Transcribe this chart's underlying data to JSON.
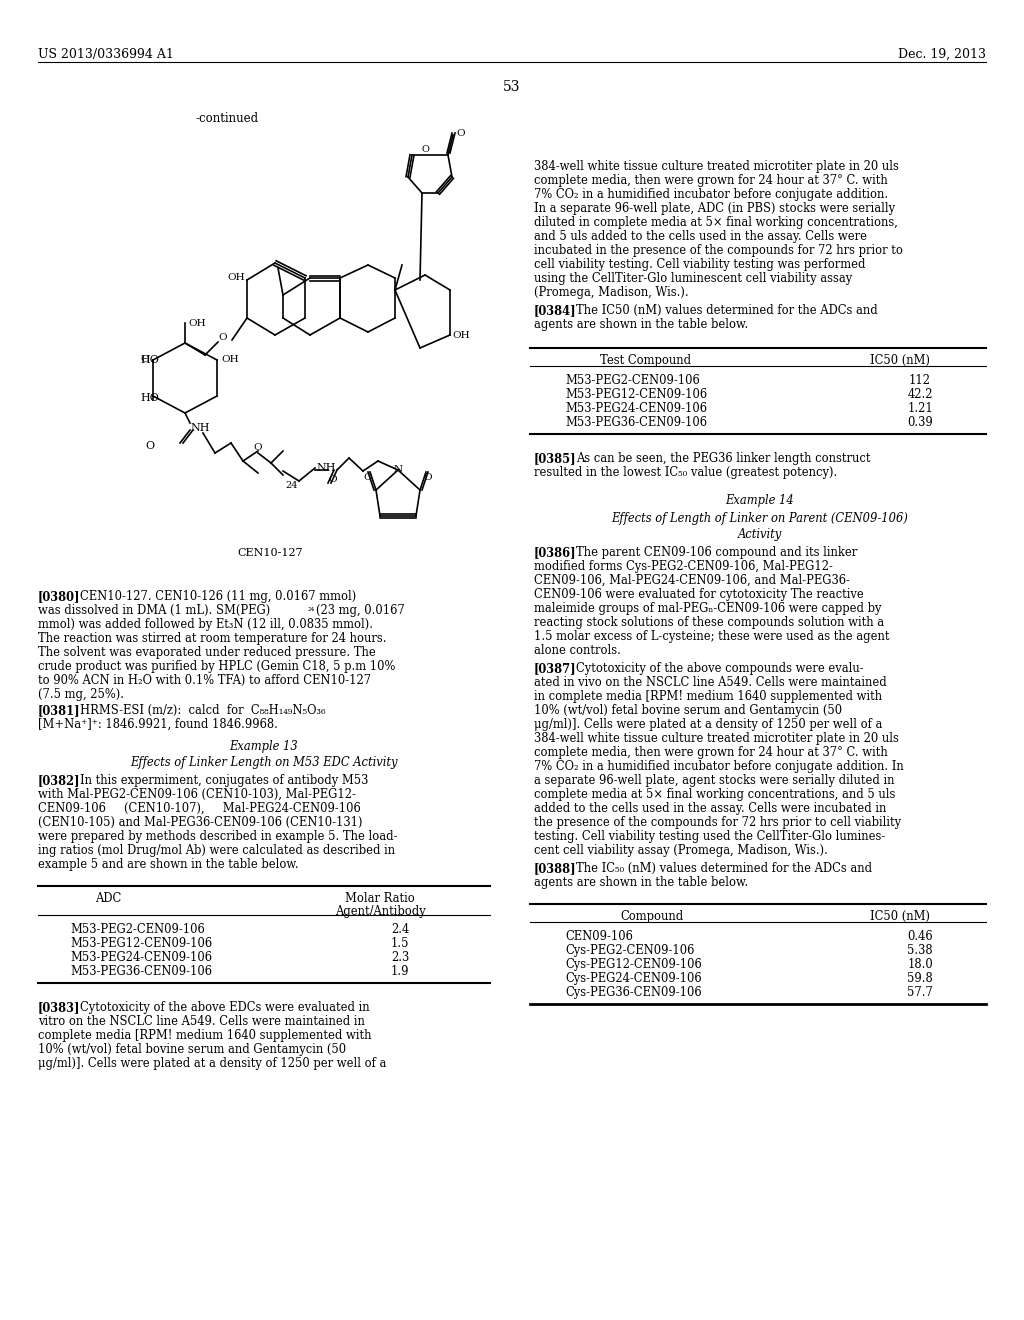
{
  "bg_color": "#ffffff",
  "header_left": "US 2013/0336994 A1",
  "header_right": "Dec. 19, 2013",
  "page_number": "53",
  "table1": {
    "headers": [
      "ADC",
      "Molar Ratio\nAgent/Antibody"
    ],
    "rows": [
      [
        "M53-PEG2-CEN09-106",
        "2.4"
      ],
      [
        "M53-PEG12-CEN09-106",
        "1.5"
      ],
      [
        "M53-PEG24-CEN09-106",
        "2.3"
      ],
      [
        "M53-PEG36-CEN09-106",
        "1.9"
      ]
    ]
  },
  "table2": {
    "headers": [
      "Test Compound",
      "IC50 (nM)"
    ],
    "rows": [
      [
        "M53-PEG2-CEN09-106",
        "112"
      ],
      [
        "M53-PEG12-CEN09-106",
        "42.2"
      ],
      [
        "M53-PEG24-CEN09-106",
        "1.21"
      ],
      [
        "M53-PEG36-CEN09-106",
        "0.39"
      ]
    ]
  },
  "table3": {
    "headers": [
      "Compound",
      "IC50 (nM)"
    ],
    "rows": [
      [
        "CEN09-106",
        "0.46"
      ],
      [
        "Cys-PEG2-CEN09-106",
        "5.38"
      ],
      [
        "Cys-PEG12-CEN09-106",
        "18.0"
      ],
      [
        "Cys-PEG24-CEN09-106",
        "59.8"
      ],
      [
        "Cys-PEG36-CEN09-106",
        "57.7"
      ]
    ]
  }
}
